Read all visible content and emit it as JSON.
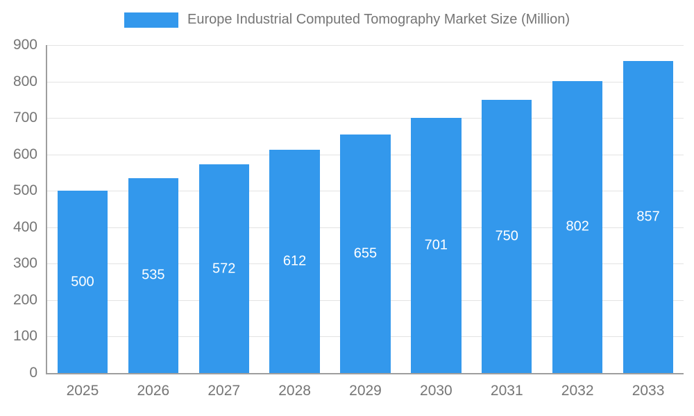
{
  "chart_data": {
    "type": "bar",
    "title": "Europe Industrial Computed Tomography Market Size (Million)",
    "categories": [
      "2025",
      "2026",
      "2027",
      "2028",
      "2029",
      "2030",
      "2031",
      "2032",
      "2033"
    ],
    "values": [
      500,
      535,
      572,
      612,
      655,
      701,
      750,
      802,
      857
    ],
    "xlabel": "",
    "ylabel": "",
    "ylim": [
      0,
      900
    ],
    "ytick_step": 100,
    "grid": true,
    "legend_position": "top",
    "bar_color": "#3398ec",
    "bar_label_color": "#ffffff",
    "axis_text_color": "#757575",
    "gridline_color": "#e3e3e3",
    "axis_line_color": "#9e9e9e",
    "bar_width_fraction": 0.71
  }
}
